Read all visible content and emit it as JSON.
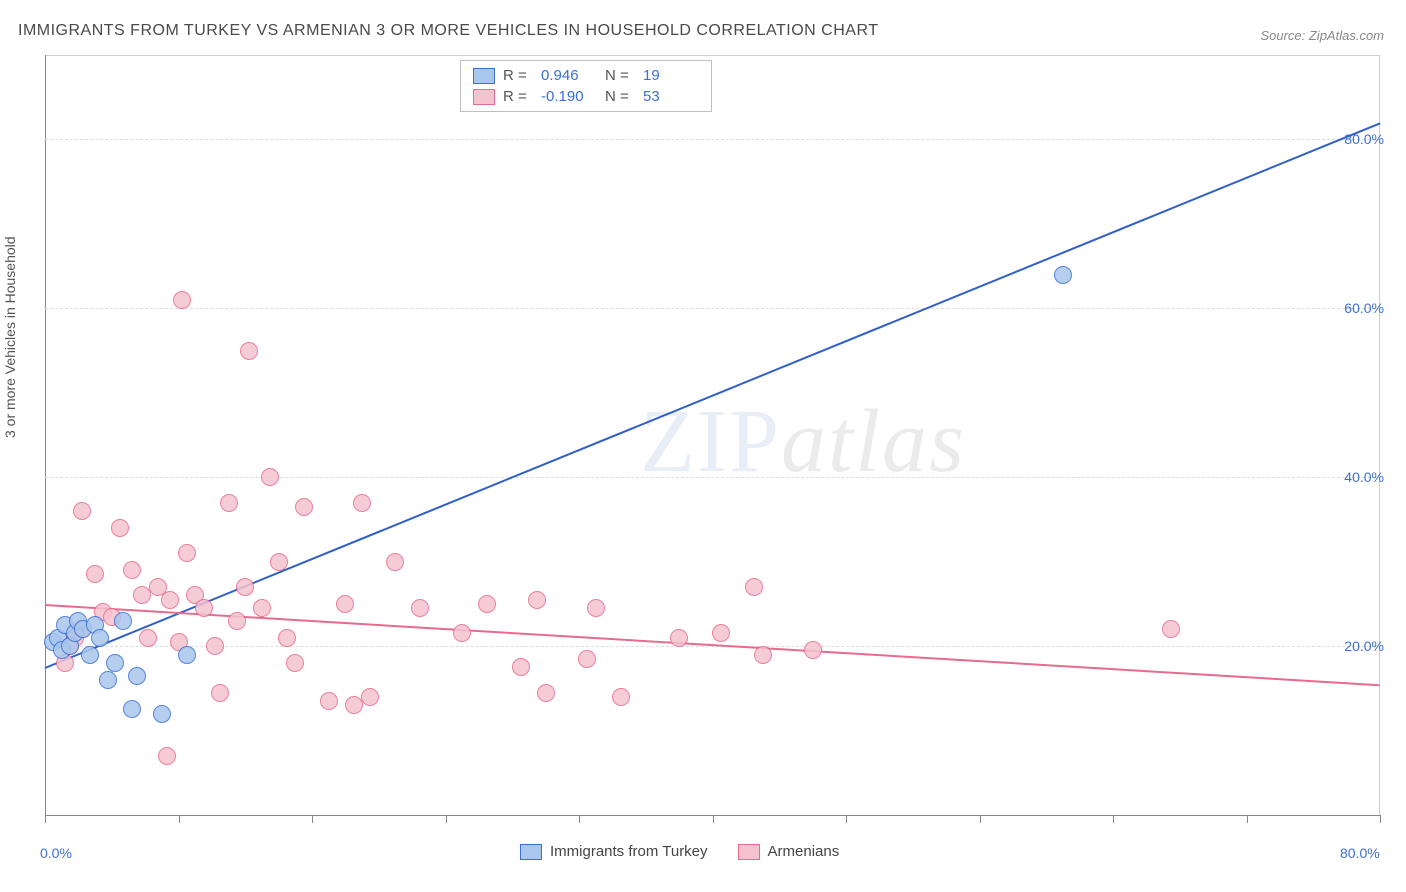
{
  "title": "IMMIGRANTS FROM TURKEY VS ARMENIAN 3 OR MORE VEHICLES IN HOUSEHOLD CORRELATION CHART",
  "source": "Source: ZipAtlas.com",
  "ylabel": "3 or more Vehicles in Household",
  "watermark_zip": "ZIP",
  "watermark_atlas": "atlas",
  "chart": {
    "type": "scatter-with-trend",
    "xlim": [
      0,
      80
    ],
    "ylim": [
      0,
      90
    ],
    "x_axis_color": "#888888",
    "y_axis_color": "#888888",
    "grid_color": "#dcdcdc",
    "background_color": "#ffffff",
    "axis_value_color": "#3b6fd4",
    "axis_value_fontsize": 14,
    "x_ticks_major": [
      0,
      80
    ],
    "x_ticks_minor": [
      8,
      16,
      24,
      32,
      40,
      48,
      56,
      64,
      72
    ],
    "y_gridlines": [
      20,
      40,
      60,
      80
    ],
    "y_axis_labels": [
      {
        "value": 20,
        "label": "20.0%"
      },
      {
        "value": 40,
        "label": "40.0%"
      },
      {
        "value": 60,
        "label": "60.0%"
      },
      {
        "value": 80,
        "label": "80.0%"
      }
    ],
    "x_axis_labels": [
      {
        "value": 0,
        "label": "0.0%"
      },
      {
        "value": 80,
        "label": "80.0%"
      }
    ],
    "series": [
      {
        "name": "Immigrants from Turkey",
        "fill_color": "#a9c6ec",
        "stroke_color": "#3b6fd4",
        "marker_size": 18,
        "R": "0.946",
        "N": "19",
        "trend": {
          "x1": 0,
          "y1": 17.5,
          "x2": 80,
          "y2": 82,
          "color": "#2f5fc7",
          "width": 2
        },
        "points": [
          [
            0.5,
            20.5
          ],
          [
            0.8,
            21
          ],
          [
            1.0,
            19.5
          ],
          [
            1.2,
            22.5
          ],
          [
            1.5,
            20
          ],
          [
            1.8,
            21.5
          ],
          [
            2.0,
            23
          ],
          [
            2.3,
            22
          ],
          [
            2.7,
            19
          ],
          [
            3.0,
            22.5
          ],
          [
            3.3,
            21
          ],
          [
            3.8,
            16
          ],
          [
            4.2,
            18
          ],
          [
            4.7,
            23
          ],
          [
            5.2,
            12.5
          ],
          [
            5.5,
            16.5
          ],
          [
            7.0,
            12
          ],
          [
            8.5,
            19
          ],
          [
            61,
            64
          ]
        ]
      },
      {
        "name": "Armenians",
        "fill_color": "#f4c3cf",
        "stroke_color": "#e76a8f",
        "marker_size": 18,
        "R": "-0.190",
        "N": "53",
        "trend": {
          "x1": 0,
          "y1": 25,
          "x2": 80,
          "y2": 15.5,
          "color": "#e76a8f",
          "width": 2
        },
        "points": [
          [
            1.2,
            18
          ],
          [
            1.8,
            21
          ],
          [
            2.2,
            36
          ],
          [
            2.2,
            22
          ],
          [
            3.0,
            28.5
          ],
          [
            3.5,
            24
          ],
          [
            4.0,
            23.5
          ],
          [
            4.5,
            34
          ],
          [
            5.2,
            29
          ],
          [
            5.8,
            26
          ],
          [
            6.2,
            21
          ],
          [
            6.8,
            27
          ],
          [
            7.3,
            7
          ],
          [
            7.5,
            25.5
          ],
          [
            8.0,
            20.5
          ],
          [
            8.2,
            61
          ],
          [
            8.5,
            31
          ],
          [
            9.0,
            26
          ],
          [
            9.5,
            24.5
          ],
          [
            10.2,
            20
          ],
          [
            10.5,
            14.5
          ],
          [
            11.0,
            37
          ],
          [
            11.5,
            23
          ],
          [
            12.0,
            27
          ],
          [
            12.2,
            55
          ],
          [
            13.0,
            24.5
          ],
          [
            13.5,
            40
          ],
          [
            14.0,
            30
          ],
          [
            14.5,
            21
          ],
          [
            15.0,
            18
          ],
          [
            15.5,
            36.5
          ],
          [
            17.0,
            13.5
          ],
          [
            18.0,
            25
          ],
          [
            18.5,
            13
          ],
          [
            19.0,
            37
          ],
          [
            19.5,
            14
          ],
          [
            21.0,
            30
          ],
          [
            22.5,
            24.5
          ],
          [
            25.0,
            21.5
          ],
          [
            26.5,
            25
          ],
          [
            28.5,
            17.5
          ],
          [
            29.5,
            25.5
          ],
          [
            30.0,
            14.5
          ],
          [
            32.5,
            18.5
          ],
          [
            33.0,
            24.5
          ],
          [
            34.5,
            14
          ],
          [
            38.0,
            21
          ],
          [
            40.5,
            21.5
          ],
          [
            42.5,
            27
          ],
          [
            43.0,
            19
          ],
          [
            46.0,
            19.5
          ],
          [
            67.5,
            22
          ],
          [
            1.5,
            20
          ]
        ]
      }
    ]
  },
  "legend_top": {
    "r_label": "R  =",
    "n_label": "N  ="
  },
  "legend_bottom": {
    "items": [
      "Immigrants from Turkey",
      "Armenians"
    ]
  }
}
